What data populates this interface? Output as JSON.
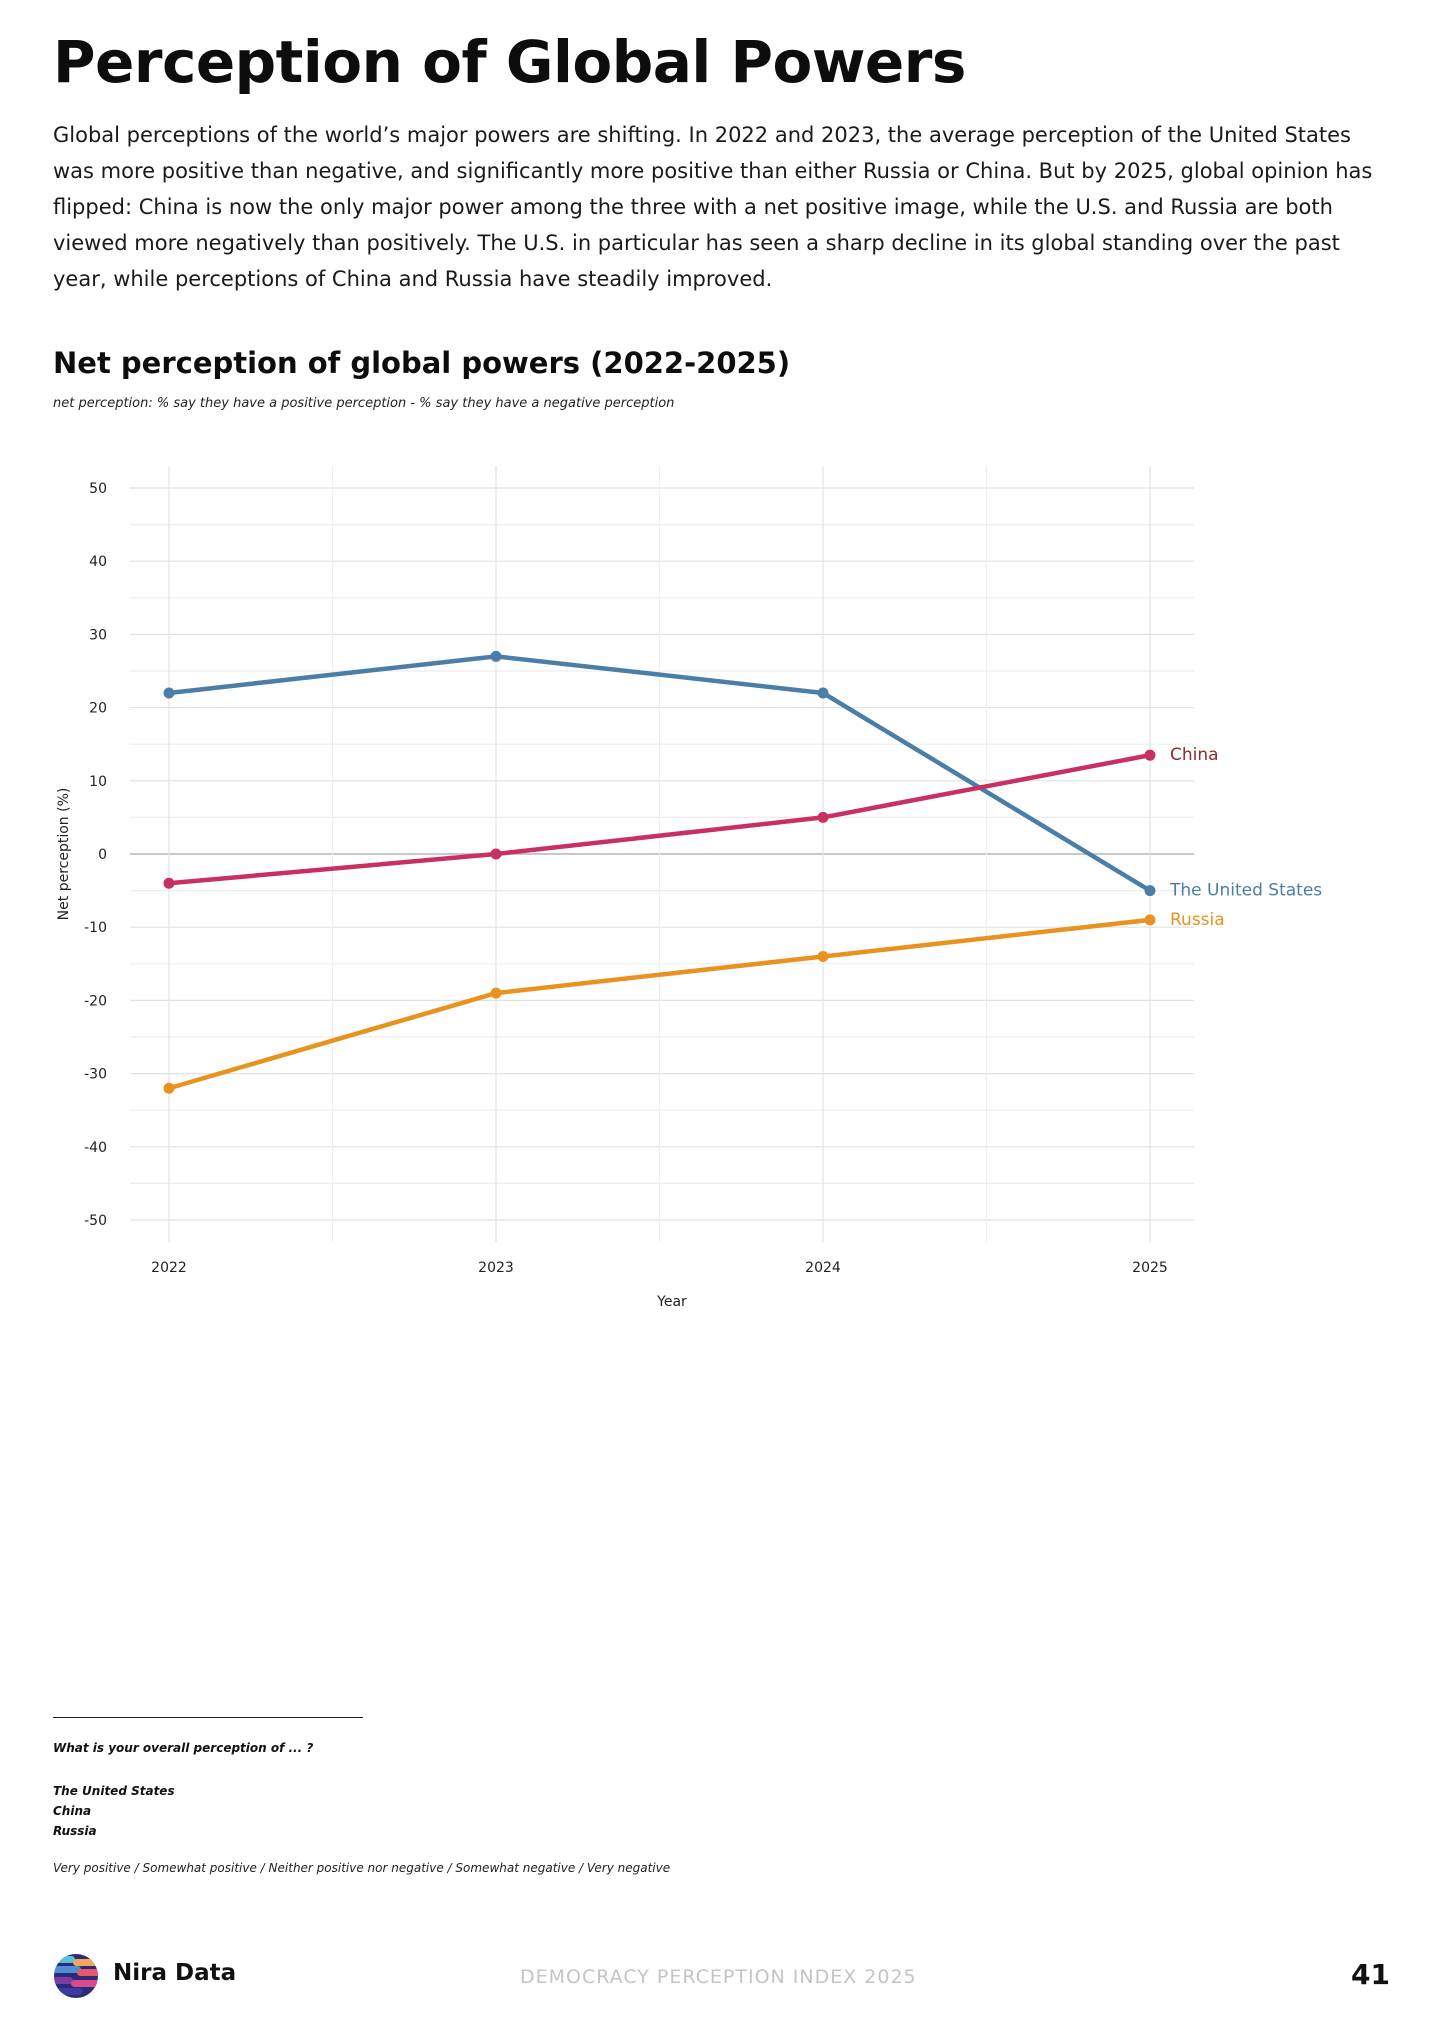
{
  "page": {
    "title": "Perception of Global Powers",
    "intro": "Global perceptions of the world’s major powers are shifting. In 2022 and 2023, the average perception of the United States was more positive than negative, and significantly more positive than either Russia or China. But by 2025, global opinion has flipped: China is now the only major power among the three with a net positive image, while the U.S. and Russia are both viewed more negatively than positively. The U.S. in particular has seen a sharp decline in its global standing over the past year, while perceptions of China and Russia have steadily improved."
  },
  "chart_data": {
    "type": "line",
    "title": "Net perception of global powers (2022-2025)",
    "subtitle": "net perception: % say they have a positive perception - % say they have a negative perception",
    "xlabel": "Year",
    "ylabel": "Net perception (%)",
    "x": [
      2022,
      2023,
      2024,
      2025
    ],
    "ylim": [
      -50,
      50
    ],
    "yticks": [
      50,
      40,
      30,
      20,
      10,
      0,
      -10,
      -20,
      -30,
      -40,
      -50
    ],
    "grid": true,
    "legend": "direct labels at line ends",
    "series": [
      {
        "name": "The United States",
        "values": [
          22,
          27,
          22,
          -5
        ],
        "color": "#4a7ea6"
      },
      {
        "name": "China",
        "values": [
          -4,
          0,
          5,
          13.5
        ],
        "color": "#c8305f",
        "label_color": "#8e2a2a"
      },
      {
        "name": "Russia",
        "values": [
          -32,
          -19,
          -14,
          -9
        ],
        "color": "#e8921f"
      }
    ]
  },
  "footnote": {
    "question": "What is your overall perception of ... ?",
    "items": [
      "The United States",
      "China",
      "Russia"
    ],
    "scale": "Very positive / Somewhat positive / Neither positive nor negative / Somewhat negative / Very negative"
  },
  "footer": {
    "brand": "Nira Data",
    "report": "DEMOCRACY PERCEPTION INDEX 2025",
    "page_number": "41"
  }
}
